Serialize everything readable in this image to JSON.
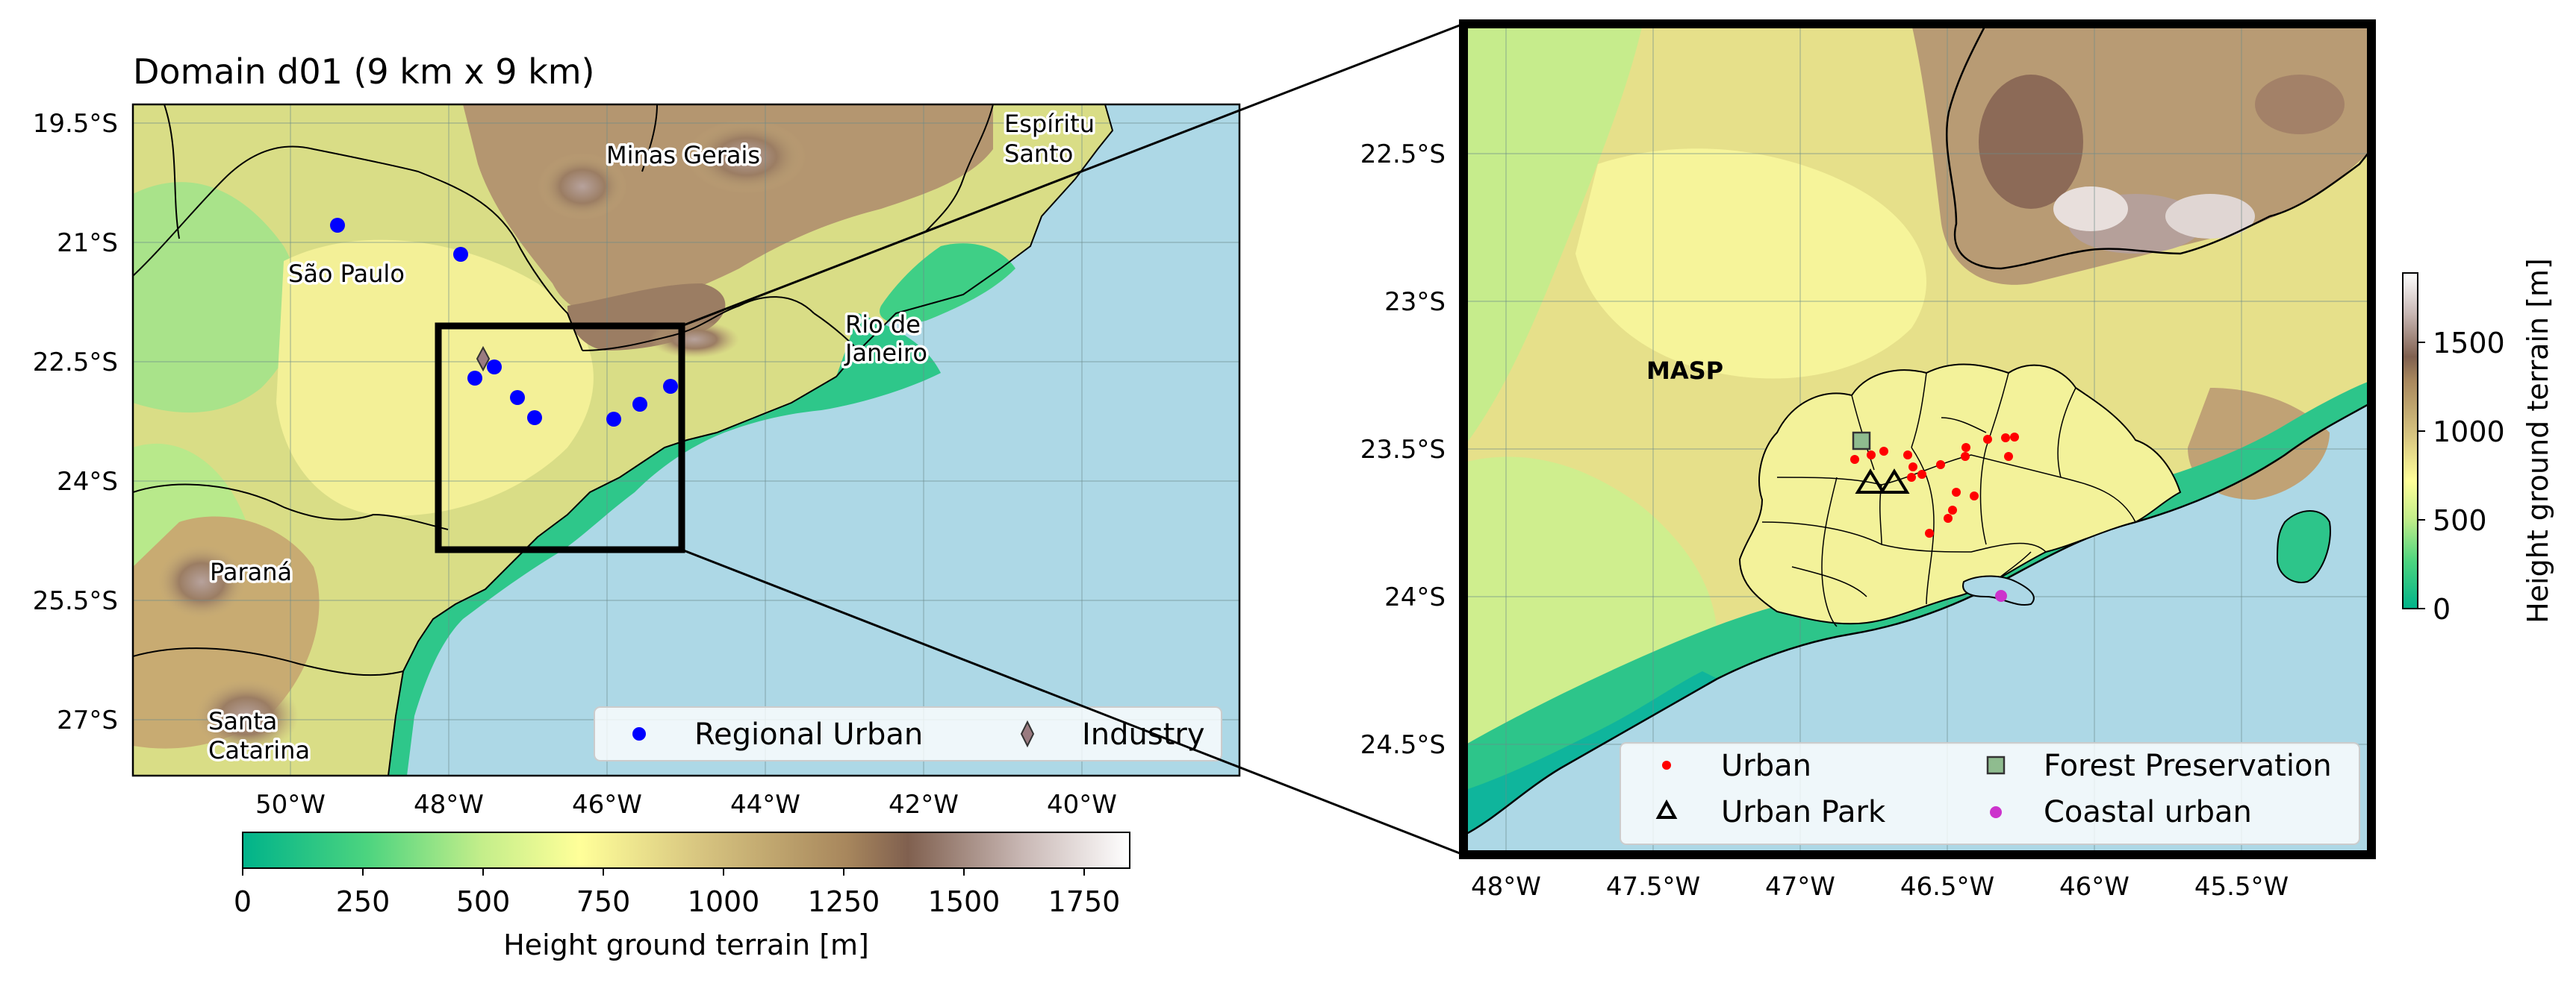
{
  "left_panel": {
    "title": "Domain d01 (9 km x 9 km)",
    "lon_ticks": [
      "50°W",
      "48°W",
      "46°W",
      "44°W",
      "42°W",
      "40°W"
    ],
    "lat_ticks": [
      "19.5°S",
      "21°S",
      "22.5°S",
      "24°S",
      "25.5°S",
      "27°S"
    ],
    "places": {
      "minas": "Minas Gerais",
      "espirito_1": "Espíritu",
      "espirito_2": "Santo",
      "sao_paulo": "São Paulo",
      "rio_1": "Rio de",
      "rio_2": "Janeiro",
      "parana": "Paraná",
      "santa_1": "Santa",
      "santa_2": "Catarina"
    },
    "legend": {
      "regional_urban": "Regional Urban",
      "industry": "Industry"
    },
    "colorbar": {
      "label": "Height ground terrain [m]",
      "ticks": [
        "0",
        "250",
        "500",
        "750",
        "1000",
        "1250",
        "1500",
        "1750"
      ]
    }
  },
  "right_panel": {
    "lon_ticks": [
      "48°W",
      "47.5°W",
      "47°W",
      "46.5°W",
      "46°W",
      "45.5°W"
    ],
    "lat_ticks": [
      "22.5°S",
      "23°S",
      "23.5°S",
      "24°S",
      "24.5°S"
    ],
    "region_label": "MASP",
    "legend": {
      "urban": "Urban",
      "urban_park": "Urban Park",
      "forest": "Forest Preservation",
      "coastal": "Coastal urban"
    },
    "colorbar": {
      "label": "Height ground terrain [m]",
      "ticks": [
        "0",
        "500",
        "1000",
        "1500"
      ]
    }
  },
  "colors": {
    "ocean": "#add8e6",
    "regional_urban": "#0000ff",
    "industry": "#9a7b80",
    "urban": "#ff0000",
    "forest": "#8fbc8f",
    "coastal": "#cc33cc"
  }
}
